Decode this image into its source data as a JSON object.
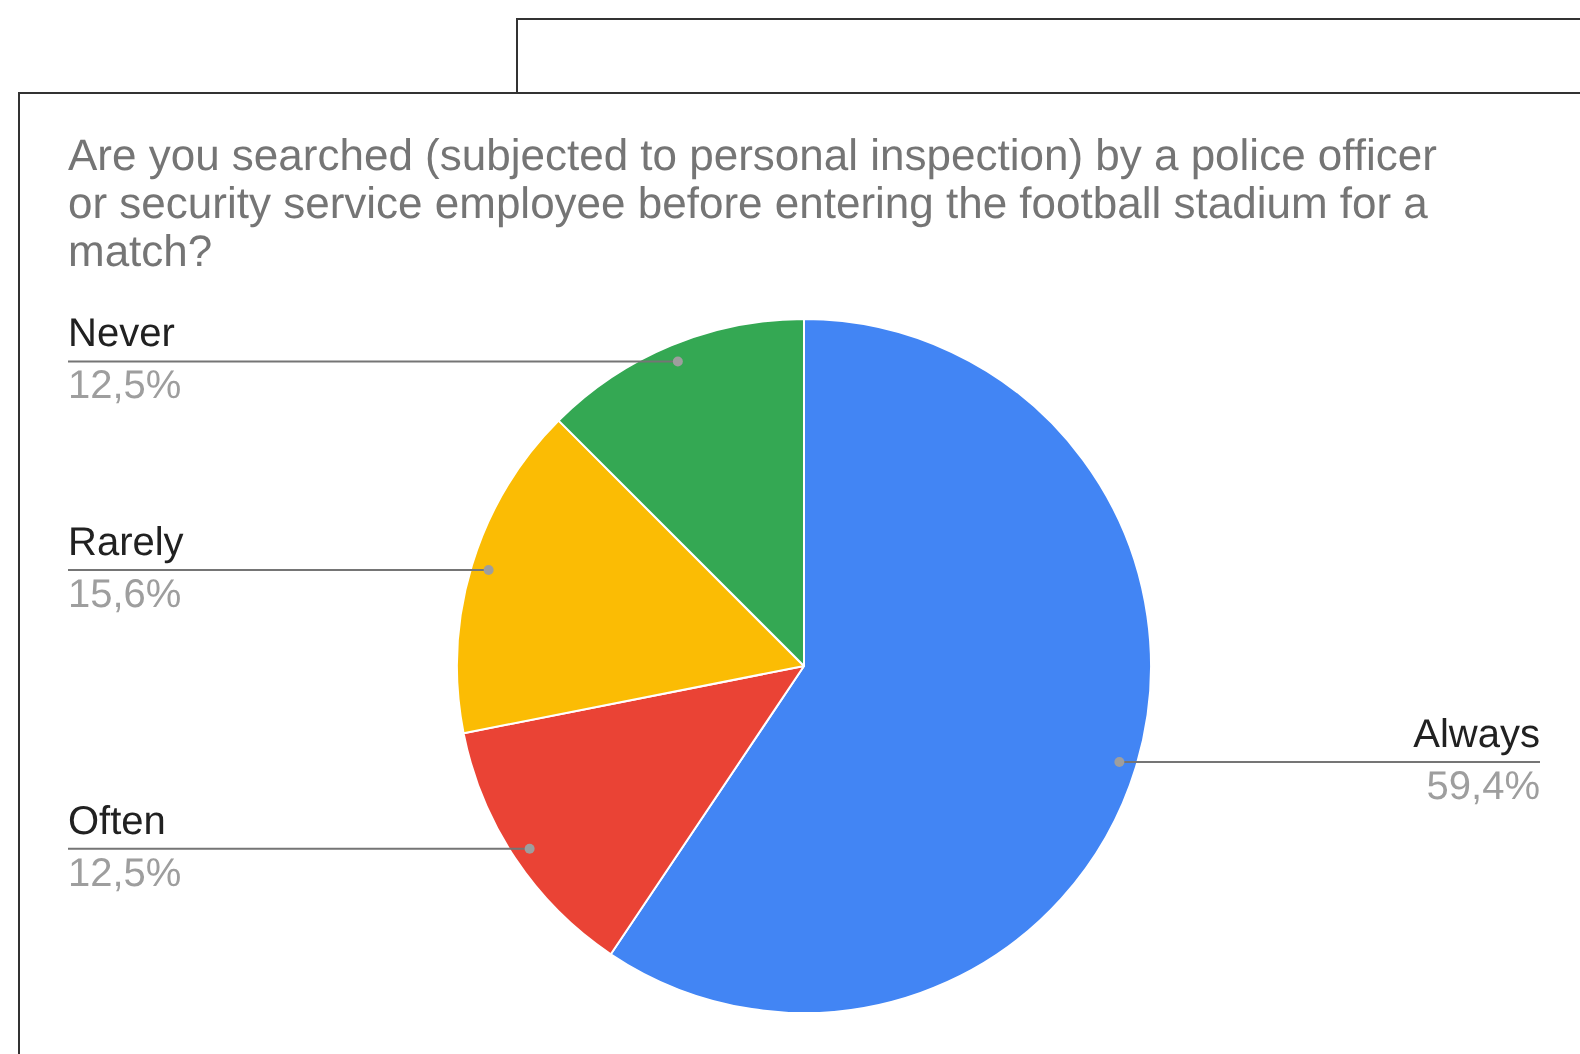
{
  "chart_data": {
    "type": "pie",
    "title": "Are you searched (subjected to personal inspection) by a police officer or security service employee before entering the football stadium for a match?",
    "categories": [
      "Always",
      "Often",
      "Rarely",
      "Never"
    ],
    "values": [
      59.4,
      12.5,
      15.6,
      12.5
    ],
    "colors": [
      "#4285f4",
      "#ea4335",
      "#fbbc04",
      "#34a853"
    ],
    "value_labels": [
      "59,4%",
      "12,5%",
      "15,6%",
      "12,5%"
    ],
    "legend": false
  }
}
